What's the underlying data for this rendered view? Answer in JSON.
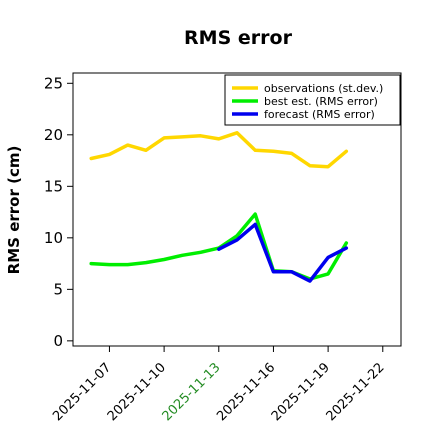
{
  "chart_data": {
    "type": "line",
    "title": "RMS error",
    "xlabel": "",
    "ylabel": "RMS error (cm)",
    "ylim": [
      -0.5,
      26
    ],
    "xlim": [
      "2025-11-05",
      "2025-11-23"
    ],
    "grid": false,
    "legend_position": "top-right",
    "y_ticks": [
      0,
      5,
      10,
      15,
      20,
      25
    ],
    "x_ticks": [
      {
        "date": "2025-11-07",
        "label": "2025-11-07",
        "color": "#000000"
      },
      {
        "date": "2025-11-10",
        "label": "2025-11-10",
        "color": "#000000"
      },
      {
        "date": "2025-11-13",
        "label": "2025-11-13",
        "color": "#228b22"
      },
      {
        "date": "2025-11-16",
        "label": "2025-11-16",
        "color": "#000000"
      },
      {
        "date": "2025-11-19",
        "label": "2025-11-19",
        "color": "#000000"
      },
      {
        "date": "2025-11-22",
        "label": "2025-11-22",
        "color": "#000000"
      }
    ],
    "series": [
      {
        "name": "observations (st.dev.)",
        "color": "#ffd700",
        "points": [
          [
            "2025-11-06",
            17.7
          ],
          [
            "2025-11-07",
            18.1
          ],
          [
            "2025-11-08",
            19.0
          ],
          [
            "2025-11-09",
            18.5
          ],
          [
            "2025-11-10",
            19.7
          ],
          [
            "2025-11-11",
            19.8
          ],
          [
            "2025-11-12",
            19.9
          ],
          [
            "2025-11-13",
            19.6
          ],
          [
            "2025-11-14",
            20.2
          ],
          [
            "2025-11-15",
            18.5
          ],
          [
            "2025-11-16",
            18.4
          ],
          [
            "2025-11-17",
            18.2
          ],
          [
            "2025-11-18",
            17.0
          ],
          [
            "2025-11-19",
            16.9
          ],
          [
            "2025-11-20",
            18.4
          ]
        ]
      },
      {
        "name": "best est. (RMS error)",
        "color": "#00ee00",
        "points": [
          [
            "2025-11-06",
            7.5
          ],
          [
            "2025-11-07",
            7.4
          ],
          [
            "2025-11-08",
            7.4
          ],
          [
            "2025-11-09",
            7.6
          ],
          [
            "2025-11-10",
            7.9
          ],
          [
            "2025-11-11",
            8.3
          ],
          [
            "2025-11-12",
            8.6
          ],
          [
            "2025-11-13",
            9.0
          ],
          [
            "2025-11-14",
            10.2
          ],
          [
            "2025-11-15",
            12.3
          ],
          [
            "2025-11-16",
            6.8
          ],
          [
            "2025-11-17",
            6.7
          ],
          [
            "2025-11-18",
            6.0
          ],
          [
            "2025-11-19",
            6.5
          ],
          [
            "2025-11-20",
            9.5
          ]
        ]
      },
      {
        "name": "forecast (RMS error)",
        "color": "#0000ee",
        "points": [
          [
            "2025-11-13",
            8.9
          ],
          [
            "2025-11-14",
            9.8
          ],
          [
            "2025-11-15",
            11.3
          ],
          [
            "2025-11-16",
            6.7
          ],
          [
            "2025-11-17",
            6.7
          ],
          [
            "2025-11-18",
            5.8
          ],
          [
            "2025-11-19",
            8.1
          ],
          [
            "2025-11-20",
            9.0
          ]
        ]
      }
    ]
  }
}
